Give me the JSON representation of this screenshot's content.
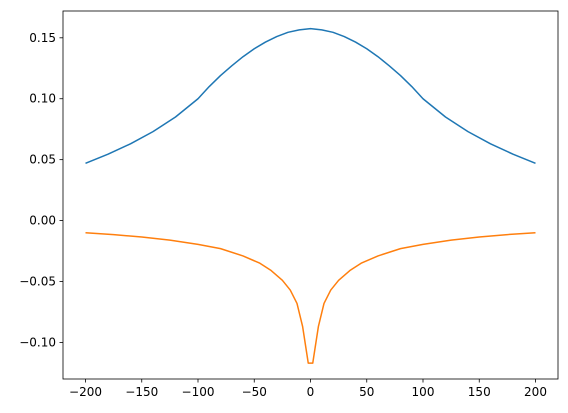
{
  "chart_data": {
    "type": "line",
    "title": "",
    "xlabel": "",
    "ylabel": "",
    "xlim": [
      -220,
      220
    ],
    "ylim": [
      -0.13,
      0.172
    ],
    "grid": false,
    "x_ticks": [
      {
        "value": -200,
        "label": "−200"
      },
      {
        "value": -150,
        "label": "−150"
      },
      {
        "value": -100,
        "label": "−100"
      },
      {
        "value": -50,
        "label": "−50"
      },
      {
        "value": 0,
        "label": "0"
      },
      {
        "value": 50,
        "label": "50"
      },
      {
        "value": 100,
        "label": "100"
      },
      {
        "value": 150,
        "label": "150"
      },
      {
        "value": 200,
        "label": "200"
      }
    ],
    "y_ticks": [
      {
        "value": -0.1,
        "label": "−0.10"
      },
      {
        "value": -0.05,
        "label": "−0.05"
      },
      {
        "value": 0.0,
        "label": "0.00"
      },
      {
        "value": 0.05,
        "label": "0.05"
      },
      {
        "value": 0.1,
        "label": "0.10"
      },
      {
        "value": 0.15,
        "label": "0.15"
      }
    ],
    "series": [
      {
        "color": "#1f77b4",
        "x": [
          -200,
          -180,
          -160,
          -140,
          -120,
          -100,
          -90,
          -80,
          -70,
          -60,
          -50,
          -40,
          -30,
          -20,
          -10,
          0,
          10,
          20,
          30,
          40,
          50,
          60,
          70,
          80,
          90,
          100,
          120,
          140,
          160,
          180,
          200
        ],
        "y": [
          0.047,
          0.0545,
          0.063,
          0.073,
          0.085,
          0.1,
          0.11,
          0.119,
          0.127,
          0.1345,
          0.141,
          0.1465,
          0.151,
          0.1545,
          0.1565,
          0.1575,
          0.1565,
          0.1545,
          0.151,
          0.1465,
          0.141,
          0.1345,
          0.127,
          0.119,
          0.11,
          0.1,
          0.085,
          0.073,
          0.063,
          0.0545,
          0.047
        ]
      },
      {
        "color": "#ff7f0e",
        "x": [
          -200,
          -175,
          -150,
          -125,
          -100,
          -80,
          -60,
          -45,
          -35,
          -25,
          -18,
          -12,
          -7,
          -4,
          -2,
          2,
          4,
          7,
          12,
          18,
          25,
          35,
          45,
          60,
          80,
          100,
          125,
          150,
          175,
          200
        ],
        "y": [
          -0.01,
          -0.0115,
          -0.0135,
          -0.016,
          -0.0195,
          -0.023,
          -0.029,
          -0.035,
          -0.041,
          -0.049,
          -0.057,
          -0.068,
          -0.087,
          -0.105,
          -0.117,
          -0.117,
          -0.105,
          -0.087,
          -0.068,
          -0.057,
          -0.049,
          -0.041,
          -0.035,
          -0.029,
          -0.023,
          -0.0195,
          -0.016,
          -0.0135,
          -0.0115,
          -0.01
        ]
      }
    ]
  }
}
